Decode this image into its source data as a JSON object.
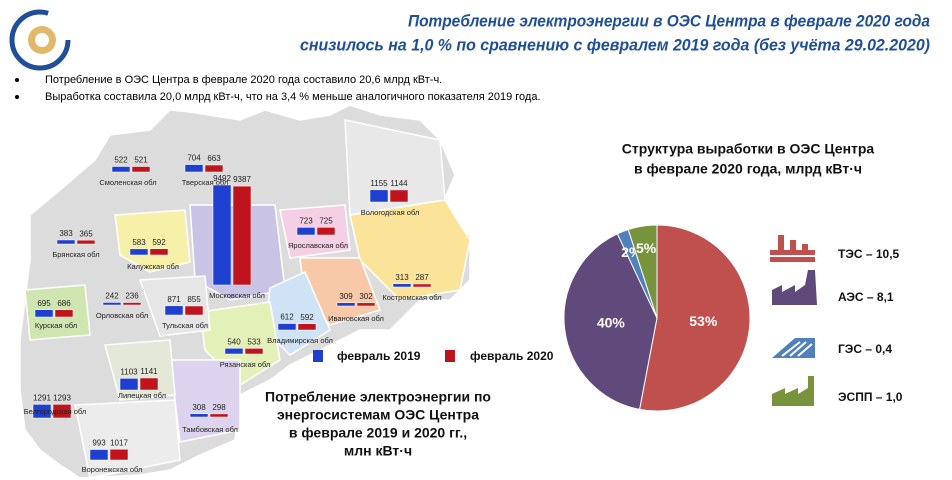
{
  "header": {
    "title": [
      "Потребление электроэнергии в ОЭС Центра в феврале 2020 года",
      "снизилось на 1,0 % по сравнению с февралем 2019 года (без учёта 29.02.2020)"
    ],
    "bullets": [
      "Потребление  в ОЭС Центра  в феврале  2020 года составило  20,6 млрд  кВт-ч.",
      "Выработка  составила  20,0 млрд кВт-ч, что  на 3,4 % меньше аналогичного  показателя  2019 года."
    ]
  },
  "chart_data": [
    {
      "type": "bar",
      "title": [
        "Потребление электроэнергии по",
        "энергосистемам ОЭС Центра",
        "в феврале 2019 и 2020 гг.,",
        "млн кВт·ч"
      ],
      "categories": [
        "Смоленская обл",
        "Тверская обл",
        "Брянская обл",
        "Калужская обл",
        "Московская обл",
        "Ярославская обл",
        "Вологодская обл",
        "Костромская обл",
        "Ивановская обл",
        "Владимирская обл",
        "Рязанская обл",
        "Тульская обл",
        "Орловская обл",
        "Курская обл",
        "Белгородская обл",
        "Липецкая обл",
        "Тамбовская обл",
        "Воронежская обл"
      ],
      "series": [
        {
          "name": "февраль 2019",
          "color": "#1f3fd0",
          "values": [
            522,
            704,
            383,
            583,
            9492,
            723,
            1155,
            313,
            309,
            612,
            540,
            871,
            242,
            695,
            1291,
            1103,
            308,
            993
          ]
        },
        {
          "name": "февраль 2020",
          "color": "#c0141c",
          "values": [
            521,
            663,
            365,
            592,
            9387,
            725,
            1144,
            287,
            302,
            592,
            533,
            855,
            236,
            686,
            1293,
            1141,
            298,
            1017
          ]
        }
      ]
    },
    {
      "type": "pie",
      "title": [
        "Структура выработки в ОЭС Центра",
        "в феврале 2020 года, млрд кВт·ч"
      ],
      "categories": [
        "ТЭС – 10,5",
        "АЭС – 8,1",
        "ГЭС – 0,4",
        "ЭСПП – 1,0"
      ],
      "values": [
        53,
        40,
        2,
        5
      ],
      "value_labels": [
        "53%",
        "40%",
        "2%",
        "5%"
      ],
      "colors": [
        "#c0504d",
        "#604a7b",
        "#4f81bd",
        "#77933c"
      ]
    }
  ]
}
